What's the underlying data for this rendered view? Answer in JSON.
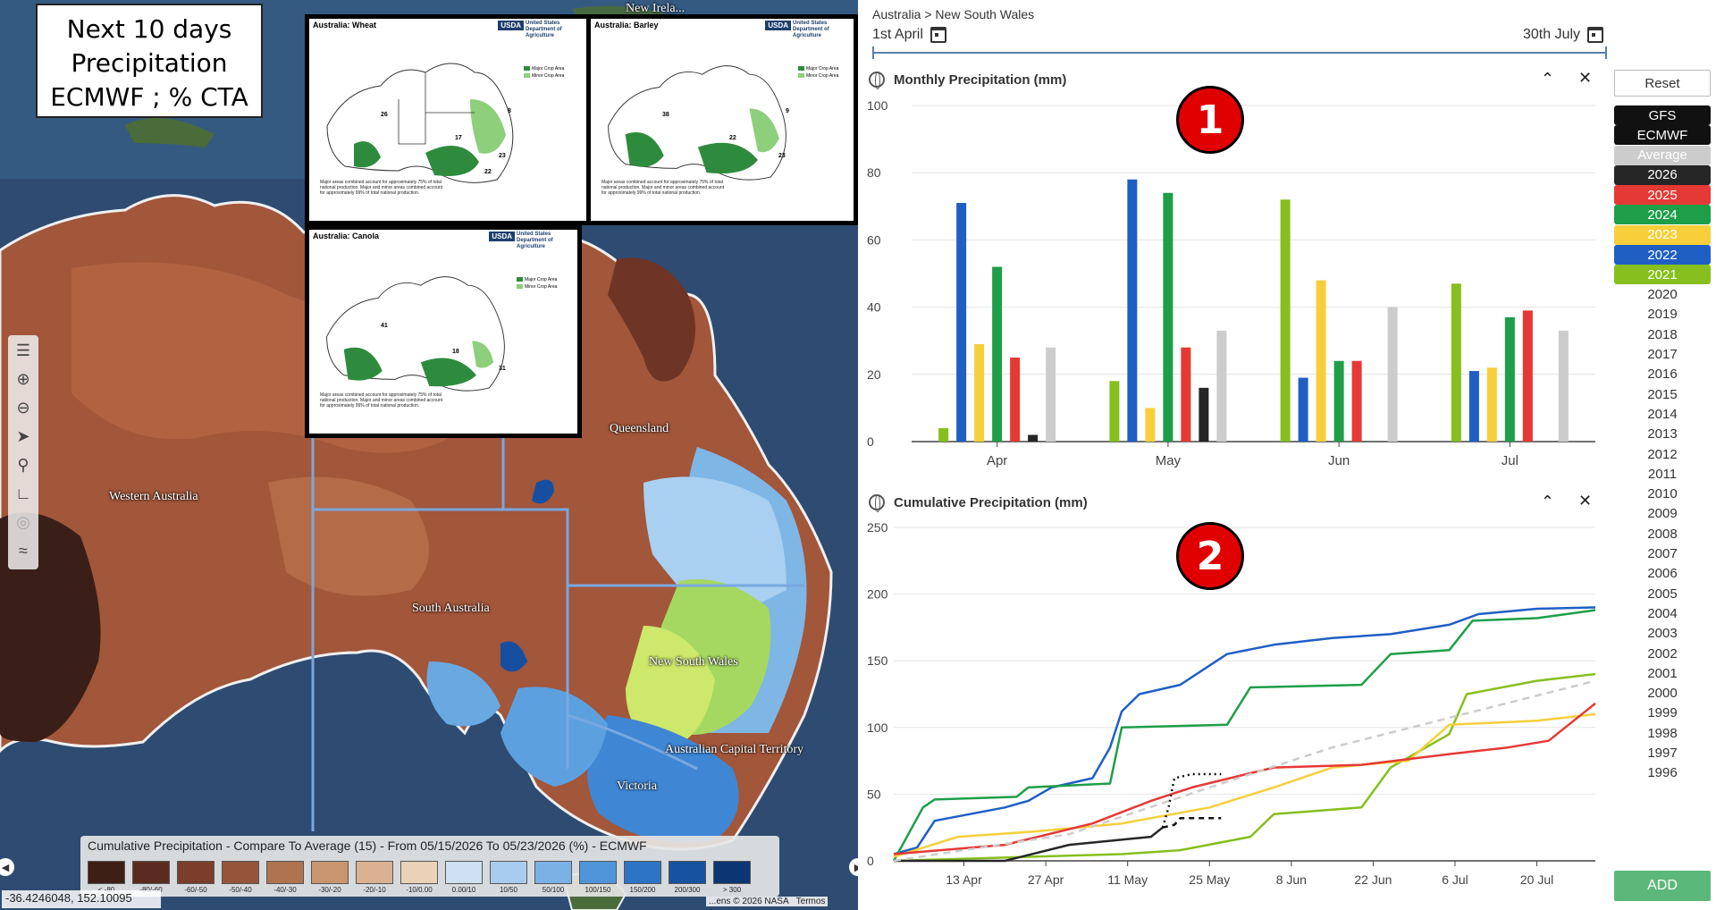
{
  "map": {
    "title_lines": [
      "Next 10 days",
      "Precipitation",
      "ECMWF ; % CTA"
    ],
    "labels": {
      "queensland": "Queensland",
      "western_australia": "Western Australia",
      "south_australia": "South Australia",
      "new_south_wales": "New South Wales",
      "act": "Australian Capital Territory",
      "victoria": "Victoria",
      "new_ireland": "New Irela..."
    },
    "usda_cards": [
      {
        "title": "Australia:  Wheat",
        "pcts": [
          "26",
          "17",
          "8",
          "23",
          "22"
        ]
      },
      {
        "title": "Australia:  Barley",
        "pcts": [
          "38",
          "22",
          "9",
          "23"
        ]
      },
      {
        "title": "Australia:  Canola",
        "pcts": [
          "41",
          "18",
          "31"
        ]
      }
    ],
    "usda_header": "United States Department of Agriculture",
    "usda_logo": "USDA",
    "legend_major": "Major Crop Area",
    "legend_minor": "Minor Crop Area",
    "usda_note": "Major areas combined account for approximately 75% of total national production. Major and minor areas combined account for approximately 99% of total national production.",
    "legend_bar": {
      "title": "Cumulative Precipitation - Compare To Average (15) - From 05/15/2026 To 05/23/2026 (%) - ECMWF",
      "swatches": [
        {
          "label": "< -80",
          "color": "#3d1f16"
        },
        {
          "label": "-80/-60",
          "color": "#5c2b1f"
        },
        {
          "label": "-60/-50",
          "color": "#7a3e2a"
        },
        {
          "label": "-50/-40",
          "color": "#96553a"
        },
        {
          "label": "-40/-30",
          "color": "#b07350"
        },
        {
          "label": "-30/-20",
          "color": "#c8956f"
        },
        {
          "label": "-20/-10",
          "color": "#dab291"
        },
        {
          "label": "-10/0.00",
          "color": "#ead2b8"
        },
        {
          "label": "0.00/10",
          "color": "#cfe0f2"
        },
        {
          "label": "10/50",
          "color": "#a7ccee"
        },
        {
          "label": "50/100",
          "color": "#7ab2e6"
        },
        {
          "label": "100/150",
          "color": "#4f95da"
        },
        {
          "label": "150/200",
          "color": "#2c74c4"
        },
        {
          "label": "200/300",
          "color": "#1652a0"
        },
        {
          "label": "> 300",
          "color": "#0c3573"
        }
      ]
    },
    "coord": "-36.4246048, 152.10095",
    "attribution": {
      "a": "...ens © 2026 NASA",
      "b": "Termos"
    }
  },
  "panel": {
    "breadcrumb": "Australia > New South Wales",
    "date_start": "1st April",
    "date_end": "30th July",
    "reset_label": "Reset",
    "add_label": "ADD",
    "legend_items": [
      {
        "label": "GFS",
        "bg": "#111111",
        "fg": "#ffffff"
      },
      {
        "label": "ECMWF",
        "bg": "#111111",
        "fg": "#ffffff"
      },
      {
        "label": "Average",
        "bg": "#cccccc",
        "fg": "#ffffff"
      },
      {
        "label": "2026",
        "bg": "#262626",
        "fg": "#ffffff"
      },
      {
        "label": "2025",
        "bg": "#e53935",
        "fg": "#ffffff"
      },
      {
        "label": "2024",
        "bg": "#1e9e48",
        "fg": "#ffffff"
      },
      {
        "label": "2023",
        "bg": "#f6cf3a",
        "fg": "#ffffff"
      },
      {
        "label": "2022",
        "bg": "#1f5fc4",
        "fg": "#ffffff"
      },
      {
        "label": "2021",
        "bg": "#86bf1e",
        "fg": "#ffffff"
      },
      {
        "label": "2020",
        "bg": "#ffffff",
        "fg": "#333333"
      },
      {
        "label": "2019",
        "bg": "#ffffff",
        "fg": "#333333"
      },
      {
        "label": "2018",
        "bg": "#ffffff",
        "fg": "#333333"
      },
      {
        "label": "2017",
        "bg": "#ffffff",
        "fg": "#333333"
      },
      {
        "label": "2016",
        "bg": "#ffffff",
        "fg": "#333333"
      },
      {
        "label": "2015",
        "bg": "#ffffff",
        "fg": "#333333"
      },
      {
        "label": "2014",
        "bg": "#ffffff",
        "fg": "#333333"
      },
      {
        "label": "2013",
        "bg": "#ffffff",
        "fg": "#333333"
      },
      {
        "label": "2012",
        "bg": "#ffffff",
        "fg": "#333333"
      },
      {
        "label": "2011",
        "bg": "#ffffff",
        "fg": "#333333"
      },
      {
        "label": "2010",
        "bg": "#ffffff",
        "fg": "#333333"
      },
      {
        "label": "2009",
        "bg": "#ffffff",
        "fg": "#333333"
      },
      {
        "label": "2008",
        "bg": "#ffffff",
        "fg": "#333333"
      },
      {
        "label": "2007",
        "bg": "#ffffff",
        "fg": "#333333"
      },
      {
        "label": "2006",
        "bg": "#ffffff",
        "fg": "#333333"
      },
      {
        "label": "2005",
        "bg": "#ffffff",
        "fg": "#333333"
      },
      {
        "label": "2004",
        "bg": "#ffffff",
        "fg": "#333333"
      },
      {
        "label": "2003",
        "bg": "#ffffff",
        "fg": "#333333"
      },
      {
        "label": "2002",
        "bg": "#ffffff",
        "fg": "#333333"
      },
      {
        "label": "2001",
        "bg": "#ffffff",
        "fg": "#333333"
      },
      {
        "label": "2000",
        "bg": "#ffffff",
        "fg": "#333333"
      },
      {
        "label": "1999",
        "bg": "#ffffff",
        "fg": "#333333"
      },
      {
        "label": "1998",
        "bg": "#ffffff",
        "fg": "#333333"
      },
      {
        "label": "1997",
        "bg": "#ffffff",
        "fg": "#333333"
      },
      {
        "label": "1996",
        "bg": "#ffffff",
        "fg": "#333333"
      }
    ],
    "chart1_badge": "1",
    "chart2_badge": "2"
  },
  "chart_data": [
    {
      "type": "bar",
      "title": "Monthly Precipitation (mm)",
      "categories": [
        "Apr",
        "May",
        "Jun",
        "Jul"
      ],
      "ylim": [
        0,
        100
      ],
      "yticks": [
        0,
        20,
        40,
        60,
        80,
        100
      ],
      "grid": true,
      "series": [
        {
          "name": "2021",
          "color": "#86bf1e",
          "values": [
            4,
            18,
            72,
            47
          ]
        },
        {
          "name": "2022",
          "color": "#1f5fc4",
          "values": [
            71,
            78,
            19,
            21
          ]
        },
        {
          "name": "2023",
          "color": "#f6cf3a",
          "values": [
            29,
            10,
            48,
            22
          ]
        },
        {
          "name": "2024",
          "color": "#1e9e48",
          "values": [
            52,
            74,
            24,
            37
          ]
        },
        {
          "name": "2025",
          "color": "#e53935",
          "values": [
            25,
            28,
            24,
            39
          ]
        },
        {
          "name": "2026",
          "color": "#262626",
          "values": [
            2,
            16,
            null,
            null
          ]
        },
        {
          "name": "Average",
          "color": "#cccccc",
          "values": [
            28,
            33,
            40,
            33
          ]
        }
      ]
    },
    {
      "type": "line",
      "title": "Cumulative Precipitation (mm)",
      "ylim": [
        0,
        250
      ],
      "yticks": [
        0,
        50,
        100,
        150,
        200,
        250
      ],
      "xlim": [
        "2026-04-01",
        "2026-07-30"
      ],
      "xticks": [
        "13 Apr",
        "27 Apr",
        "11 May",
        "25 May",
        "8 Jun",
        "22 Jun",
        "6 Jul",
        "20 Jul"
      ],
      "grid": true,
      "series": [
        {
          "name": "2022",
          "color": "#1f5fc4",
          "x": [
            "2026-04-01",
            "2026-04-05",
            "2026-04-08",
            "2026-04-20",
            "2026-04-24",
            "2026-04-28",
            "2026-05-05",
            "2026-05-08",
            "2026-05-10",
            "2026-05-13",
            "2026-05-20",
            "2026-05-28",
            "2026-06-05",
            "2026-06-15",
            "2026-06-25",
            "2026-07-05",
            "2026-07-10",
            "2026-07-20",
            "2026-07-30"
          ],
          "y": [
            5,
            10,
            30,
            40,
            45,
            55,
            62,
            85,
            112,
            125,
            132,
            155,
            162,
            167,
            170,
            177,
            185,
            189,
            190
          ]
        },
        {
          "name": "2024",
          "color": "#1e9e48",
          "x": [
            "2026-04-01",
            "2026-04-06",
            "2026-04-08",
            "2026-04-22",
            "2026-04-24",
            "2026-05-08",
            "2026-05-10",
            "2026-05-28",
            "2026-06-01",
            "2026-06-20",
            "2026-06-25",
            "2026-07-05",
            "2026-07-09",
            "2026-07-20",
            "2026-07-30"
          ],
          "y": [
            0,
            40,
            46,
            48,
            55,
            58,
            100,
            102,
            130,
            132,
            155,
            158,
            180,
            182,
            188
          ]
        },
        {
          "name": "2021",
          "color": "#86bf1e",
          "x": [
            "2026-04-01",
            "2026-05-10",
            "2026-05-20",
            "2026-06-01",
            "2026-06-05",
            "2026-06-20",
            "2026-06-25",
            "2026-07-05",
            "2026-07-08",
            "2026-07-20",
            "2026-07-30"
          ],
          "y": [
            0,
            5,
            8,
            18,
            35,
            40,
            70,
            95,
            125,
            135,
            140
          ]
        },
        {
          "name": "2023",
          "color": "#f6cf3a",
          "x": [
            "2026-04-01",
            "2026-04-12",
            "2026-04-25",
            "2026-05-10",
            "2026-05-25",
            "2026-06-05",
            "2026-06-15",
            "2026-06-28",
            "2026-07-05",
            "2026-07-20",
            "2026-07-30"
          ],
          "y": [
            3,
            18,
            22,
            28,
            40,
            55,
            70,
            75,
            102,
            105,
            110
          ]
        },
        {
          "name": "2025",
          "color": "#e53935",
          "x": [
            "2026-04-01",
            "2026-04-20",
            "2026-05-05",
            "2026-05-15",
            "2026-05-22",
            "2026-06-05",
            "2026-06-20",
            "2026-07-05",
            "2026-07-15",
            "2026-07-22",
            "2026-07-30"
          ],
          "y": [
            5,
            12,
            28,
            45,
            55,
            70,
            72,
            80,
            85,
            90,
            118
          ]
        },
        {
          "name": "2026",
          "color": "#262626",
          "x": [
            "2026-04-01",
            "2026-04-20",
            "2026-05-01",
            "2026-05-15",
            "2026-05-17"
          ],
          "y": [
            0,
            0,
            12,
            18,
            25
          ]
        },
        {
          "name": "ECMWF",
          "color": "#111111",
          "dash": "6,5",
          "x": [
            "2026-05-17",
            "2026-05-19",
            "2026-05-20",
            "2026-05-27"
          ],
          "y": [
            25,
            27,
            32,
            32
          ]
        },
        {
          "name": "GFS",
          "color": "#111111",
          "dash": "2,4",
          "x": [
            "2026-05-17",
            "2026-05-18",
            "2026-05-19",
            "2026-05-22",
            "2026-05-27"
          ],
          "y": [
            25,
            40,
            62,
            65,
            65
          ]
        },
        {
          "name": "Average",
          "color": "#cccccc",
          "dash": "8,6",
          "x": [
            "2026-04-01",
            "2026-05-01",
            "2026-05-25",
            "2026-06-15",
            "2026-07-30"
          ],
          "y": [
            0,
            20,
            55,
            85,
            135
          ]
        }
      ]
    }
  ]
}
